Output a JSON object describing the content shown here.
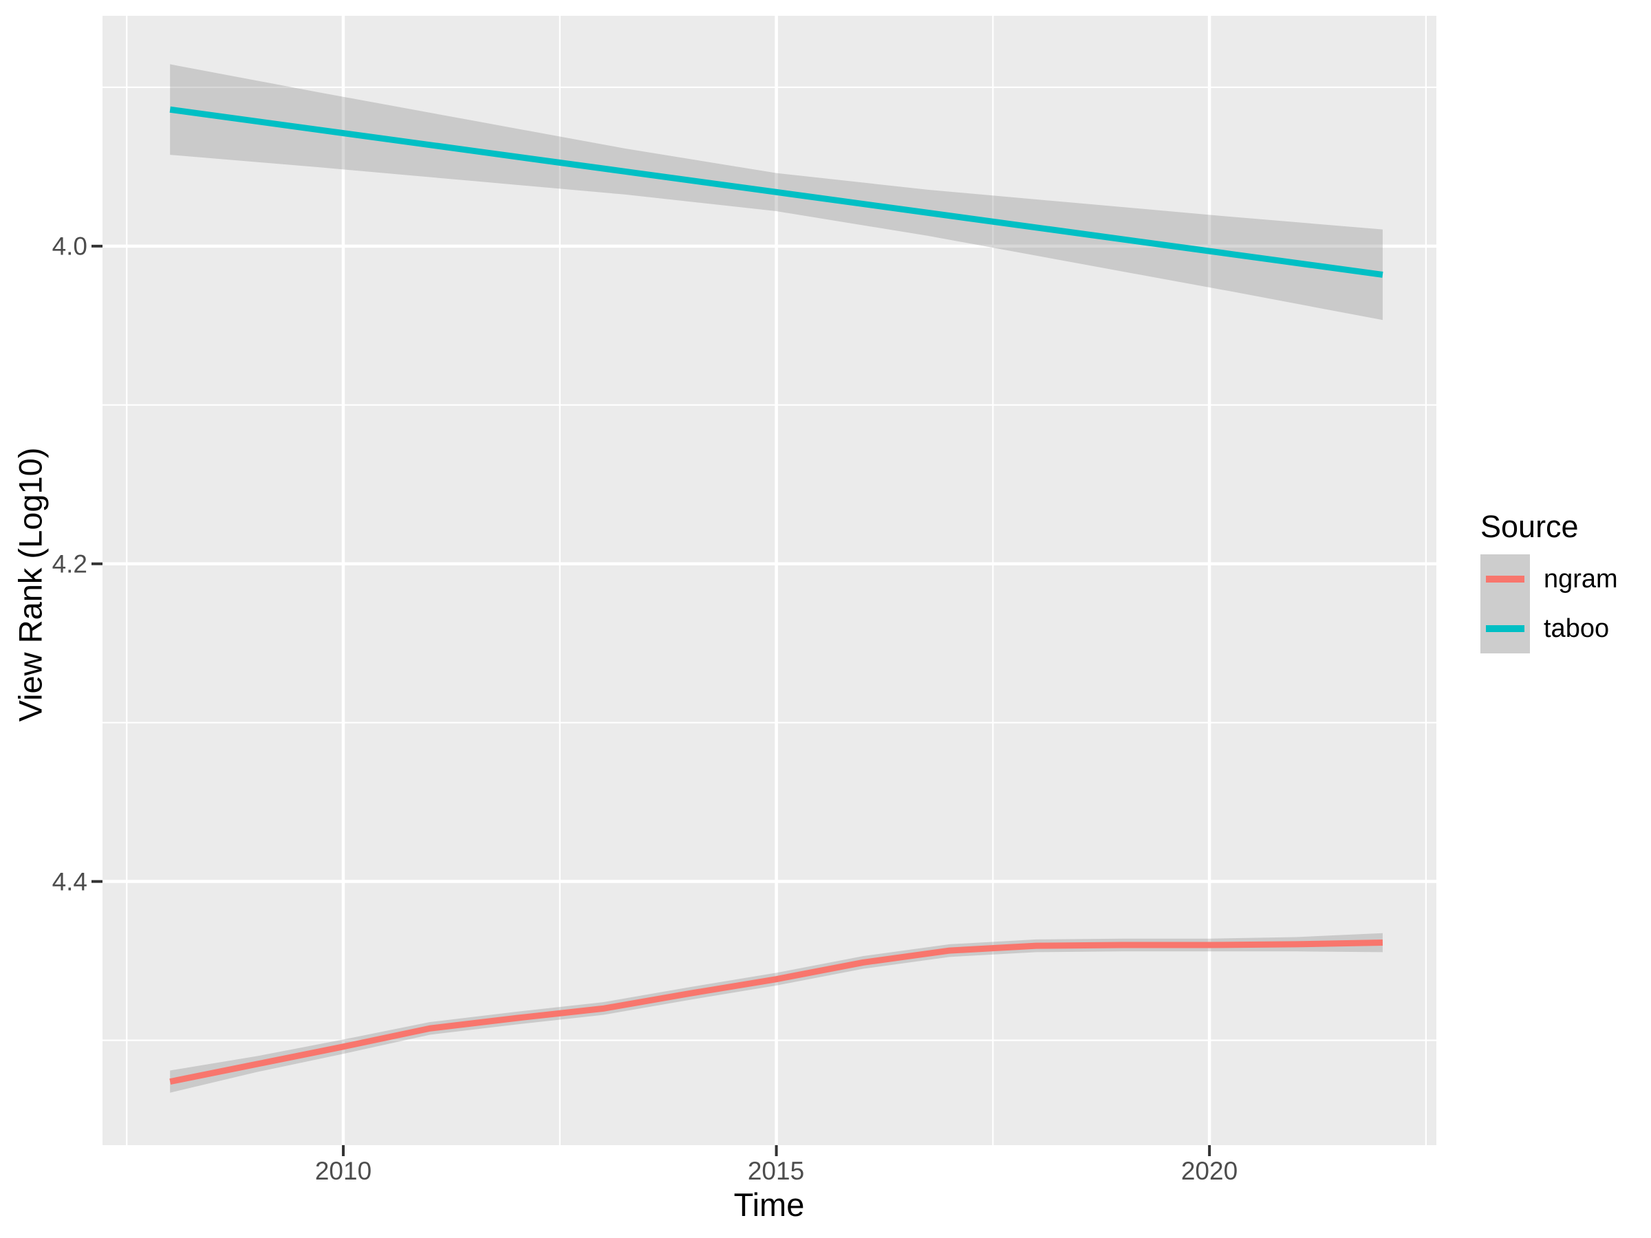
{
  "figure": {
    "background": "#FFFFFF",
    "panel_background": "#EBEBEB",
    "grid_color": "#FFFFFF",
    "tick_mark_color": "#333333",
    "tick_text_color": "#4D4D4D"
  },
  "chart_data": {
    "type": "line",
    "title": "",
    "xlabel": "Time",
    "ylabel": "View Rank (Log10)",
    "x_tick_labels": [
      "2010",
      "2015",
      "2020"
    ],
    "x_tick_values": [
      2010,
      2015,
      2020
    ],
    "x_minor_values": [
      2007.5,
      2012.5,
      2017.5,
      2022.5
    ],
    "y_tick_labels": [
      "4.0",
      "4.2",
      "4.4"
    ],
    "y_tick_values": [
      4.0,
      4.2,
      4.4
    ],
    "y_minor_values": [
      3.9,
      4.1,
      4.3,
      4.5
    ],
    "y_axis_reversed": true,
    "xlim": [
      2007.22,
      2022.62
    ],
    "ylim": [
      3.855,
      4.566
    ],
    "grid": true,
    "ribbon_color": "#787878",
    "ribbon_opacity": 0.29,
    "line_width": 9,
    "legend": {
      "title": "Source",
      "position": "right",
      "entries": [
        {
          "label": "ngram",
          "color": "#F8766D"
        },
        {
          "label": "taboo",
          "color": "#00BFC4"
        }
      ]
    },
    "series": [
      {
        "name": "ngram",
        "color": "#F8766D",
        "smooth": "loess",
        "x": [
          2008,
          2009,
          2010,
          2011,
          2012,
          2013,
          2014,
          2015,
          2016,
          2017,
          2018,
          2019,
          2020,
          2021,
          2022
        ],
        "y": [
          4.526,
          4.515,
          4.504,
          4.4925,
          4.486,
          4.48,
          4.4705,
          4.4615,
          4.451,
          4.4435,
          4.4405,
          4.44,
          4.44,
          4.4395,
          4.4385
        ],
        "ribbon_low": [
          4.519,
          4.51,
          4.4995,
          4.4885,
          4.482,
          4.476,
          4.4665,
          4.4575,
          4.447,
          4.4395,
          4.4365,
          4.436,
          4.436,
          4.435,
          4.4325
        ],
        "ribbon_high": [
          4.533,
          4.52,
          4.5085,
          4.4965,
          4.49,
          4.484,
          4.4745,
          4.4655,
          4.455,
          4.4475,
          4.4445,
          4.444,
          4.444,
          4.444,
          4.4445
        ]
      },
      {
        "name": "taboo",
        "color": "#00BFC4",
        "smooth": "lm",
        "x": [
          2008,
          2009.75,
          2011.5,
          2013.25,
          2015,
          2016.75,
          2018.5,
          2020.25,
          2022
        ],
        "y": [
          3.914,
          3.927,
          3.94,
          3.953,
          3.966,
          3.979,
          3.992,
          4.005,
          4.018
        ],
        "ribbon_low": [
          3.8855,
          3.9035,
          3.921,
          3.9385,
          3.954,
          3.9645,
          3.973,
          3.9815,
          3.9895
        ],
        "ribbon_high": [
          3.9425,
          3.9505,
          3.959,
          3.9675,
          3.978,
          3.9935,
          4.011,
          4.0285,
          4.0465
        ]
      }
    ]
  }
}
